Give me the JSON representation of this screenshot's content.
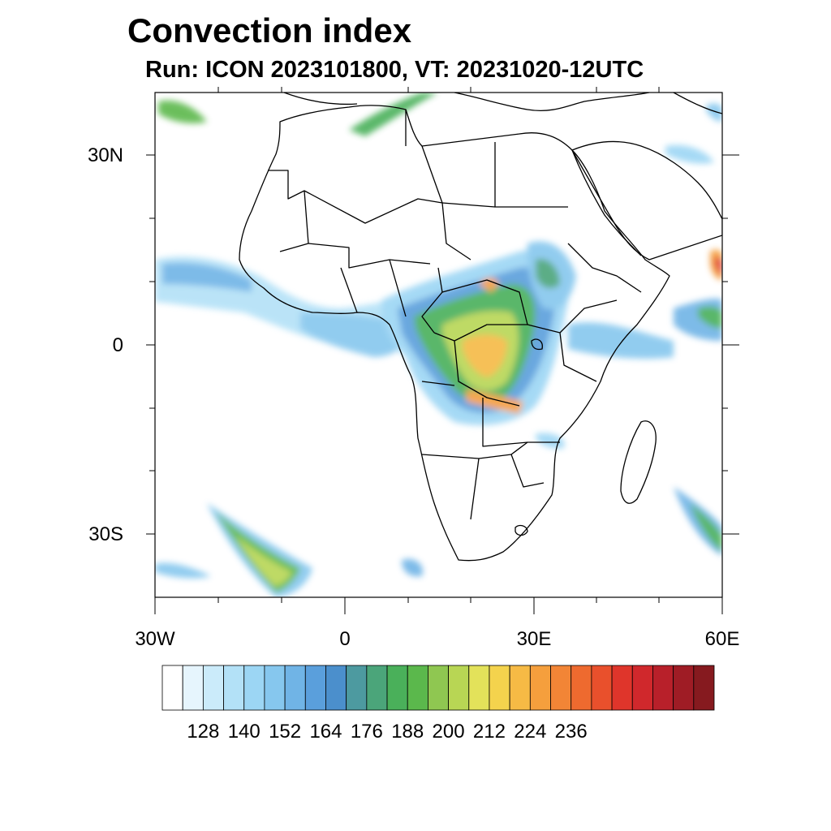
{
  "title": "Convection index",
  "subtitle": "Run: ICON 2023101800,  VT: 20231020-12UTC",
  "axes": {
    "lat_labels": [
      "30N",
      "0",
      "30S"
    ],
    "lon_labels": [
      "30W",
      "0",
      "30E",
      "60E"
    ],
    "lon_range": [
      -30,
      60
    ],
    "lat_range": [
      -40,
      40
    ]
  },
  "colorbar": {
    "labels": [
      "128",
      "140",
      "152",
      "164",
      "176",
      "188",
      "200",
      "212",
      "224",
      "236"
    ],
    "colors": [
      "#ffffff",
      "#e6f5fd",
      "#cbebfa",
      "#b3e1f7",
      "#9cd6f4",
      "#86c7ee",
      "#70b4e6",
      "#5a9fdc",
      "#4b8fcc",
      "#4d9aa0",
      "#4ba57a",
      "#4ab05a",
      "#5bb84c",
      "#8fc751",
      "#b8d654",
      "#e3e25a",
      "#f4d34d",
      "#f6ba45",
      "#f59f3d",
      "#f28536",
      "#ee6a2f",
      "#e9502c",
      "#df352b",
      "#d0282c",
      "#b8202a",
      "#9f1c25",
      "#861a1f"
    ]
  },
  "map": {
    "feature": "convection-index-field",
    "region": "Africa",
    "coastline_color": "#000000"
  }
}
